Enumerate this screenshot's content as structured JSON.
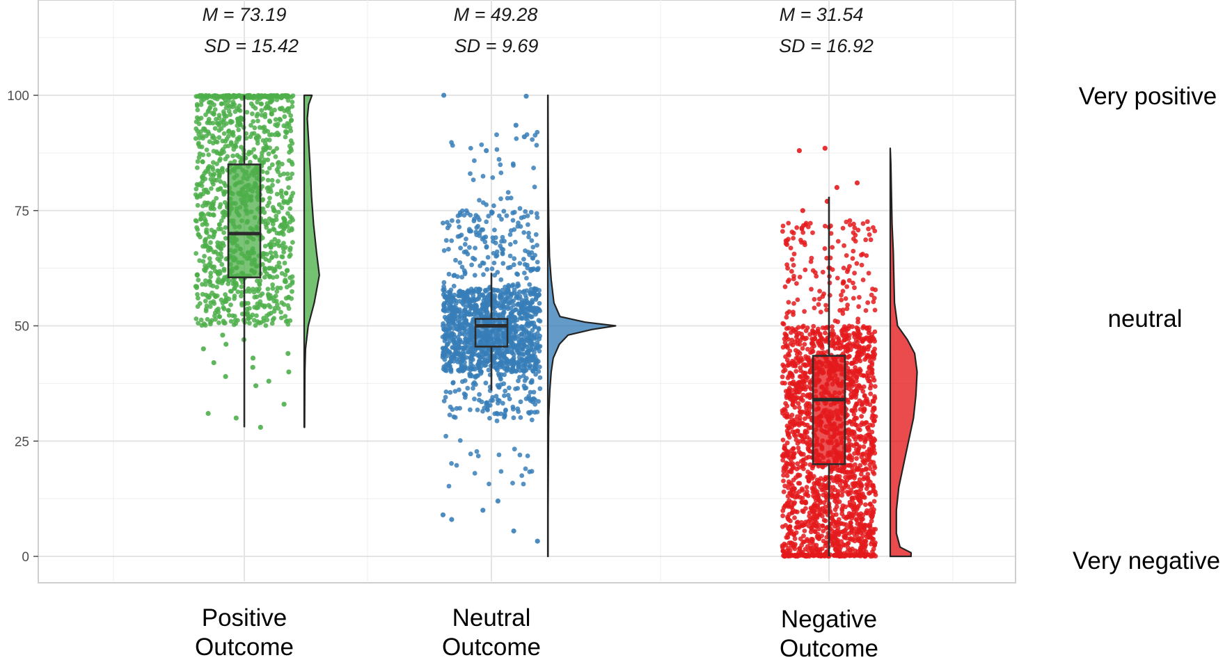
{
  "chart_data": {
    "type": "raincloud",
    "y_axis": {
      "min": 0,
      "max": 100,
      "ylim": [
        -5.5,
        120
      ],
      "ticks": [
        0,
        25,
        50,
        75,
        100
      ],
      "tick_labels": [
        "0",
        "25",
        "50",
        "75",
        "100"
      ]
    },
    "grid": true,
    "scale_labels": [
      {
        "value": 100,
        "label": "Very positive"
      },
      {
        "value": 50,
        "label": "neutral"
      },
      {
        "value": 0,
        "label": "Very negative"
      }
    ],
    "groups": [
      {
        "name": "Positive Outcome",
        "label_lines": [
          "Positive",
          "Outcome"
        ],
        "color": "#4daf4a",
        "mean_label": "M = 73.19",
        "sd_label": "SD = 15.42",
        "mean": 73.19,
        "sd": 15.42,
        "box": {
          "min": 28,
          "q1": 60.5,
          "median": 70,
          "q3": 85,
          "max": 100
        },
        "density": [
          [
            28,
            0.02
          ],
          [
            40,
            0.03
          ],
          [
            45,
            0.06
          ],
          [
            50,
            0.18
          ],
          [
            55,
            0.45
          ],
          [
            61,
            0.68
          ],
          [
            66,
            0.55
          ],
          [
            72,
            0.42
          ],
          [
            78,
            0.33
          ],
          [
            84,
            0.27
          ],
          [
            90,
            0.2
          ],
          [
            95,
            0.14
          ],
          [
            98,
            0.2
          ],
          [
            100,
            0.35
          ]
        ],
        "density_width": 0.13,
        "points": {
          "bands": [
            {
              "from": 50,
              "to": 100,
              "count": 1100
            },
            {
              "from": 99.6,
              "to": 100,
              "count": 120
            }
          ],
          "outliers": [
            45,
            44,
            42,
            41,
            43,
            40,
            39,
            38,
            37,
            33,
            31,
            30,
            28,
            46,
            47,
            48
          ]
        }
      },
      {
        "name": "Neutral Outcome",
        "label_lines": [
          "Neutral",
          "Outcome"
        ],
        "color": "#377eb8",
        "mean_label": "M = 49.28",
        "sd_label": "SD = 9.69",
        "mean": 49.28,
        "sd": 9.69,
        "box": {
          "min": 36,
          "q1": 45.5,
          "median": 50,
          "q3": 51.5,
          "max": 61.5
        },
        "density": [
          [
            0,
            0.004
          ],
          [
            10,
            0.004
          ],
          [
            20,
            0.008
          ],
          [
            30,
            0.012
          ],
          [
            36,
            0.03
          ],
          [
            40,
            0.05
          ],
          [
            43,
            0.08
          ],
          [
            46,
            0.17
          ],
          [
            48,
            0.3
          ],
          [
            49.2,
            0.65
          ],
          [
            50,
            1.0
          ],
          [
            50.8,
            0.55
          ],
          [
            52,
            0.18
          ],
          [
            55,
            0.09
          ],
          [
            60,
            0.05
          ],
          [
            65,
            0.025
          ],
          [
            72,
            0.014
          ],
          [
            80,
            0.008
          ],
          [
            90,
            0.005
          ],
          [
            100,
            0.003
          ]
        ],
        "density_width": 0.58,
        "points": {
          "bands": [
            {
              "from": 40,
              "to": 58,
              "count": 900
            },
            {
              "from": 30,
              "to": 75,
              "count": 420
            },
            {
              "from": 15,
              "to": 92,
              "count": 160
            }
          ],
          "outliers": [
            5.5,
            8,
            9,
            3.3,
            10,
            12,
            100,
            99.8,
            93.5,
            91,
            88
          ]
        }
      },
      {
        "name": "Negative Outcome",
        "label_lines": [
          "Negative",
          "Outcome"
        ],
        "color": "#e41a1c",
        "mean_label": "M = 31.54",
        "sd_label": "SD = 16.92",
        "mean": 31.54,
        "sd": 16.92,
        "box": {
          "min": 0,
          "q1": 20,
          "median": 34,
          "q3": 43.5,
          "max": 78
        },
        "density": [
          [
            0,
            0.17
          ],
          [
            0.8,
            0.17
          ],
          [
            2,
            0.08
          ],
          [
            5,
            0.05
          ],
          [
            10,
            0.05
          ],
          [
            15,
            0.07
          ],
          [
            20,
            0.11
          ],
          [
            25,
            0.15
          ],
          [
            30,
            0.19
          ],
          [
            35,
            0.21
          ],
          [
            40,
            0.22
          ],
          [
            44,
            0.2
          ],
          [
            47,
            0.14
          ],
          [
            50,
            0.06
          ],
          [
            55,
            0.035
          ],
          [
            60,
            0.03
          ],
          [
            66,
            0.025
          ],
          [
            72,
            0.015
          ],
          [
            78,
            0.01
          ],
          [
            85,
            0.005
          ],
          [
            88.5,
            0.0
          ]
        ],
        "density_width": 0.23,
        "points": {
          "bands": [
            {
              "from": 0,
              "to": 50,
              "count": 1800
            },
            {
              "from": 0,
              "to": 0.4,
              "count": 140
            },
            {
              "from": 50,
              "to": 73,
              "count": 150
            }
          ],
          "outliers": [
            75,
            81,
            88,
            88.5,
            80,
            77
          ]
        }
      }
    ]
  }
}
